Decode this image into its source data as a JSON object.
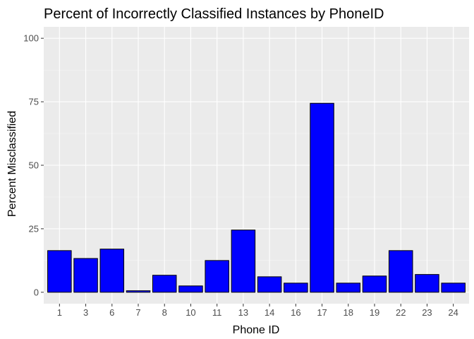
{
  "chart_data": {
    "type": "bar",
    "title": "Percent of Incorrectly Classified Instances by PhoneID",
    "xlabel": "Phone ID",
    "ylabel": "Percent Misclassified",
    "categories": [
      "1",
      "3",
      "6",
      "7",
      "8",
      "10",
      "11",
      "13",
      "14",
      "16",
      "17",
      "18",
      "19",
      "22",
      "23",
      "24"
    ],
    "values": [
      16.4,
      13.3,
      17.0,
      0.6,
      6.7,
      2.5,
      12.5,
      24.5,
      6.1,
      3.6,
      74.4,
      3.6,
      6.4,
      16.4,
      7.0,
      3.6
    ],
    "ylim": [
      -4.5,
      104.5
    ],
    "yticks": [
      0,
      25,
      50,
      75,
      100
    ],
    "grid": true,
    "legend": "none",
    "colors": {
      "bar_fill": "#0000ff",
      "bar_stroke": "#000000",
      "panel_bg": "#ebebeb",
      "grid_major": "#ffffff",
      "grid_minor": "#f5f5f5"
    }
  }
}
